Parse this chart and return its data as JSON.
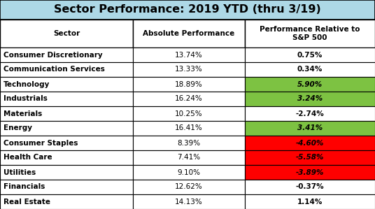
{
  "title": "Sector Performance: 2019 YTD (thru 3/19)",
  "title_bg": "#add8e6",
  "col_headers": [
    "Sector",
    "Absolute Performance",
    "Performance Relative to\nS&P 500"
  ],
  "sectors": [
    "Consumer Discretionary",
    "Communication Services",
    "Technology",
    "Industrials",
    "Materials",
    "Energy",
    "Consumer Staples",
    "Health Care",
    "Utilities",
    "Financials",
    "Real Estate"
  ],
  "absolute": [
    "13.74%",
    "13.33%",
    "18.89%",
    "16.24%",
    "10.25%",
    "16.41%",
    "8.39%",
    "7.41%",
    "9.10%",
    "12.62%",
    "14.13%"
  ],
  "relative": [
    "0.75%",
    "0.34%",
    "5.90%",
    "3.24%",
    "-2.74%",
    "3.41%",
    "-4.60%",
    "-5.58%",
    "-3.89%",
    "-0.37%",
    "1.14%"
  ],
  "relative_italic": [
    false,
    false,
    true,
    true,
    false,
    true,
    true,
    true,
    true,
    false,
    false
  ],
  "relative_bg": [
    null,
    null,
    "#7dc242",
    "#7dc242",
    null,
    "#7dc242",
    "#ff0000",
    "#ff0000",
    "#ff0000",
    null,
    null
  ],
  "grid_color": "#000000",
  "title_fontsize": 11.5,
  "header_fontsize": 7.5,
  "cell_fontsize": 7.5,
  "fig_width": 5.36,
  "fig_height": 2.99,
  "dpi": 100
}
